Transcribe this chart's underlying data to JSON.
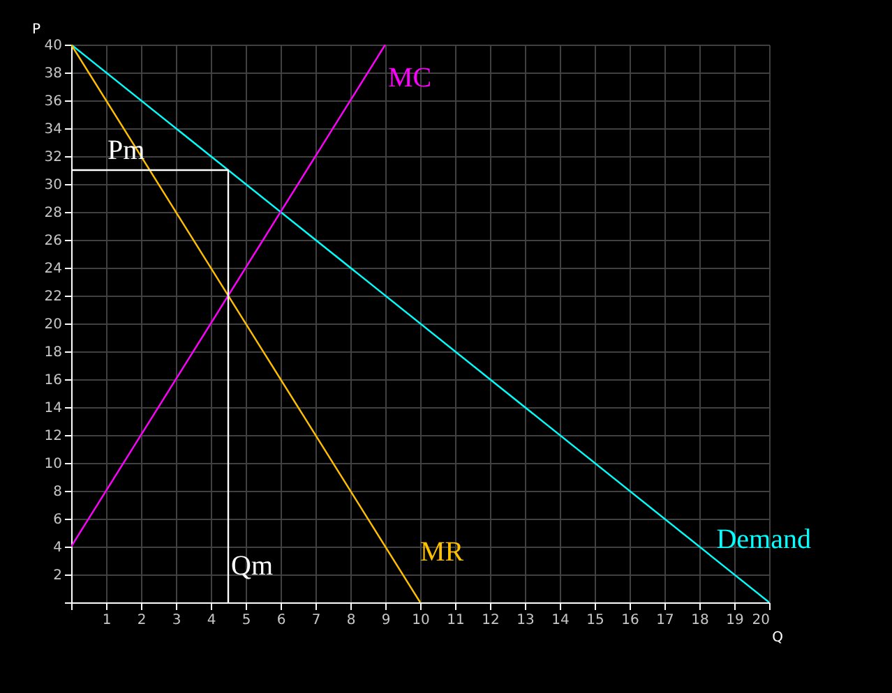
{
  "chart_data": {
    "type": "line",
    "xlabel": "Q",
    "ylabel": "P",
    "xlim": [
      0,
      20
    ],
    "ylim": [
      0,
      40
    ],
    "xticks": [
      {
        "value": 0,
        "label": null
      },
      1,
      2,
      3,
      4,
      5,
      6,
      7,
      8,
      9,
      10,
      11,
      12,
      13,
      14,
      15,
      16,
      17,
      18,
      19,
      20
    ],
    "yticks": [
      {
        "value": 0,
        "label": null
      },
      2,
      4,
      6,
      8,
      10,
      12,
      14,
      16,
      18,
      20,
      22,
      24,
      26,
      28,
      30,
      32,
      34,
      36,
      38,
      40
    ],
    "grid": true,
    "marker": "none",
    "line_style": "solid",
    "series": [
      {
        "name": "Demand",
        "color": "#00ffff",
        "x": [
          0,
          20
        ],
        "values": [
          40,
          0
        ]
      },
      {
        "name": "MR",
        "color": "#ffc000",
        "x": [
          0,
          10
        ],
        "values": [
          40,
          0
        ]
      },
      {
        "name": "MC",
        "color": "#ff00ff",
        "x": [
          0,
          9
        ],
        "values": [
          4,
          40
        ]
      },
      {
        "color": "#ffffff",
        "x": [
          0,
          4.5,
          4.5
        ],
        "values": [
          31,
          31,
          0
        ]
      }
    ],
    "annotations": [
      {
        "text": "Pm",
        "y": 31
      },
      {
        "text": "Qm",
        "x": 4.5
      }
    ]
  }
}
